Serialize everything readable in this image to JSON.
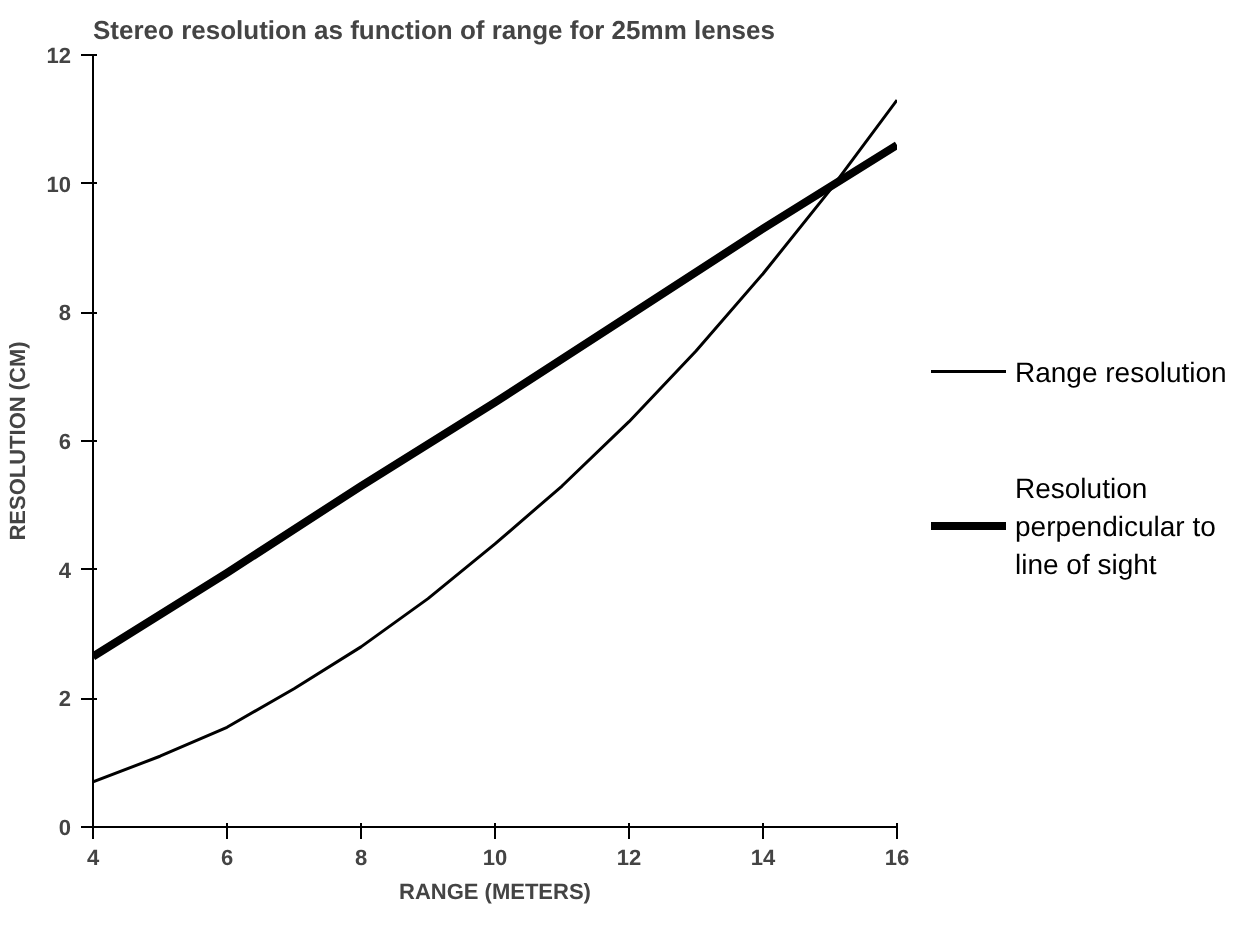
{
  "chart_data": {
    "type": "line",
    "title": "Stereo resolution as function of range for 25mm lenses",
    "xlabel": "RANGE (METERS)",
    "ylabel": "RESOLUTION (CM)",
    "xlim": [
      4,
      16
    ],
    "xticks": [
      4,
      6,
      8,
      10,
      12,
      14,
      16
    ],
    "ylim": [
      0,
      12
    ],
    "yticks": [
      0,
      2,
      4,
      6,
      8,
      10,
      12
    ],
    "grid": false,
    "legend": "right",
    "series": [
      {
        "name": "Range resolution",
        "color": "#000000",
        "x": [
          4,
          5,
          6,
          7,
          8,
          9,
          10,
          11,
          12,
          13,
          14,
          15,
          16
        ],
        "values": [
          0.7,
          1.1,
          1.55,
          2.15,
          2.8,
          3.55,
          4.4,
          5.3,
          6.3,
          7.4,
          8.6,
          9.9,
          11.3
        ]
      },
      {
        "name": "Resolution perpendicular to line of sight",
        "color": "#000000",
        "x": [
          4,
          6,
          8,
          10,
          12,
          14,
          16
        ],
        "values": [
          2.65,
          3.95,
          5.3,
          6.6,
          7.95,
          9.3,
          10.6
        ]
      }
    ]
  }
}
